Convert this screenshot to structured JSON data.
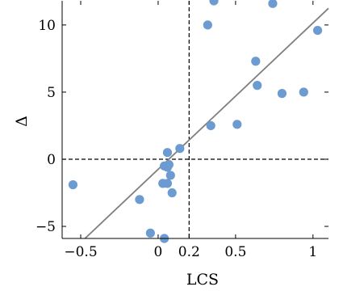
{
  "chart_data": {
    "type": "scatter",
    "title": "",
    "xlabel": "LCS",
    "ylabel": "Δ",
    "xlim": [
      -0.62,
      1.1
    ],
    "ylim": [
      -5.9,
      11.8
    ],
    "x_ticks": [
      {
        "value": -0.5,
        "label": "−0.5"
      },
      {
        "value": 0,
        "label": "0"
      },
      {
        "value": 0.2,
        "label": "0.2"
      },
      {
        "value": 0.5,
        "label": "0.5"
      },
      {
        "value": 1,
        "label": "1"
      }
    ],
    "y_ticks": [
      {
        "value": -5,
        "label": "−5"
      },
      {
        "value": 0,
        "label": "0"
      },
      {
        "value": 5,
        "label": "5"
      },
      {
        "value": 10,
        "label": "10"
      }
    ],
    "grid": false,
    "reference_lines": {
      "vertical_x": 0.2,
      "horizontal_y": 0,
      "style": "dashed"
    },
    "trend_line": {
      "slope": 10.9,
      "intercept": -0.75
    },
    "point_color": "#6b9bd1",
    "line_color": "#7f7f7f",
    "series": [
      {
        "points": [
          {
            "x": -0.55,
            "y": -1.9
          },
          {
            "x": -0.12,
            "y": -3.0
          },
          {
            "x": -0.05,
            "y": -5.5
          },
          {
            "x": 0.04,
            "y": -5.9
          },
          {
            "x": 0.03,
            "y": -1.8
          },
          {
            "x": 0.06,
            "y": -1.8
          },
          {
            "x": 0.08,
            "y": -1.2
          },
          {
            "x": 0.09,
            "y": -2.5
          },
          {
            "x": 0.04,
            "y": -0.5
          },
          {
            "x": 0.06,
            "y": -0.6
          },
          {
            "x": 0.07,
            "y": -0.4
          },
          {
            "x": 0.06,
            "y": 0.5
          },
          {
            "x": 0.14,
            "y": 0.8
          },
          {
            "x": 0.34,
            "y": 2.5
          },
          {
            "x": 0.51,
            "y": 2.6
          },
          {
            "x": 0.32,
            "y": 10.0
          },
          {
            "x": 0.36,
            "y": 11.8
          },
          {
            "x": 0.63,
            "y": 7.3
          },
          {
            "x": 0.64,
            "y": 5.5
          },
          {
            "x": 0.74,
            "y": 11.6
          },
          {
            "x": 0.8,
            "y": 4.9
          },
          {
            "x": 0.94,
            "y": 5.0
          },
          {
            "x": 1.03,
            "y": 9.6
          }
        ]
      }
    ]
  }
}
